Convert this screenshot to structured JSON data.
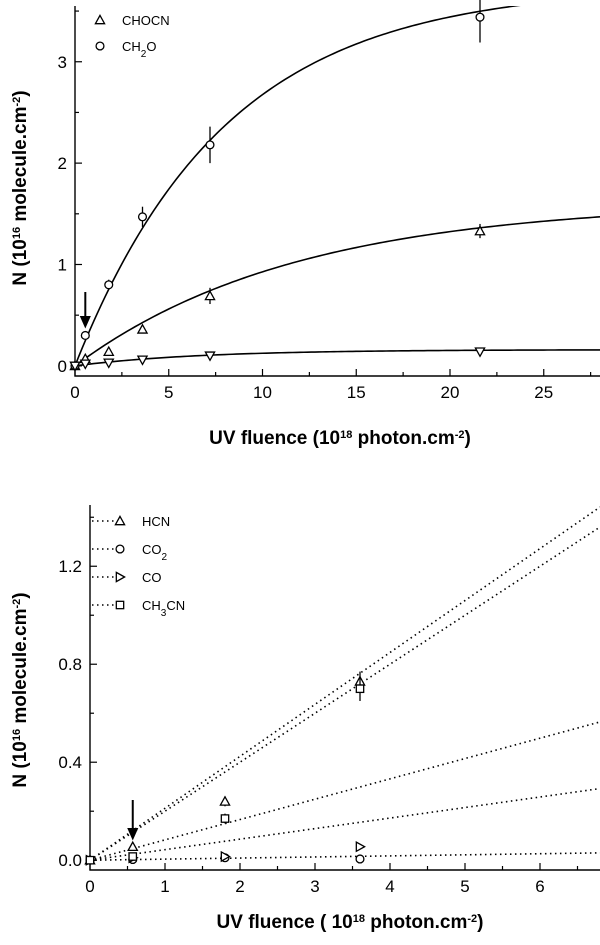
{
  "chart_data": [
    {
      "type": "scatter",
      "xlabel": "UV fluence (10",
      "xlabel_sup": "18",
      "xlabel_tail": " photon.cm",
      "xlabel_tail_sup": "-2",
      "xlabel_close": ")",
      "ylabel": "N (10",
      "ylabel_sup": "16",
      "ylabel_tail": " molecule.cm",
      "ylabel_tail_sup": "-2",
      "ylabel_close": ")",
      "xlim": [
        0,
        28
      ],
      "ylim": [
        -0.1,
        3.55
      ],
      "xticks": [
        0,
        5,
        10,
        15,
        20,
        25
      ],
      "yticks": [
        0,
        1,
        2,
        3
      ],
      "arrow_x": 0.55,
      "legend": [
        {
          "label": "CHOCN",
          "marker": "triangle-up"
        },
        {
          "label": "CH",
          "sub": "2",
          "tail": "O",
          "marker": "circle"
        }
      ],
      "series": [
        {
          "name": "CHOCN",
          "marker": "triangle-up",
          "x": [
            0,
            0.55,
            1.8,
            3.6,
            7.2,
            21.6
          ],
          "y": [
            0,
            0.07,
            0.14,
            0.36,
            0.69,
            1.33
          ],
          "yerr": [
            0,
            0.02,
            0.03,
            0.04,
            0.08,
            0.07
          ],
          "fit": {
            "amp": 1.62,
            "rate": 0.085
          }
        },
        {
          "name": "CH2O",
          "marker": "circle",
          "x": [
            0,
            0.55,
            1.8,
            3.6,
            7.2,
            21.6
          ],
          "y": [
            0,
            0.3,
            0.8,
            1.47,
            2.18,
            3.44
          ],
          "yerr": [
            0,
            0.03,
            0.05,
            0.1,
            0.18,
            0.25
          ],
          "fit": {
            "amp": 3.75,
            "rate": 0.125
          }
        },
        {
          "marker": "triangle-down",
          "x": [
            0,
            0.55,
            1.8,
            3.6,
            7.2,
            21.6
          ],
          "y": [
            0,
            0.02,
            0.03,
            0.06,
            0.1,
            0.14
          ],
          "yerr": [
            0,
            0.01,
            0.01,
            0.01,
            0.02,
            0.02
          ],
          "fit": {
            "amp": 0.16,
            "rate": 0.15
          }
        }
      ]
    },
    {
      "type": "scatter",
      "xlabel": "UV fluence ( 10",
      "xlabel_sup": "18",
      "xlabel_tail": " photon.cm",
      "xlabel_tail_sup": "-2",
      "xlabel_close": ")",
      "ylabel": "N (10",
      "ylabel_sup": "16",
      "ylabel_tail": " molecule.cm",
      "ylabel_tail_sup": "-2",
      "ylabel_close": ")",
      "xlim": [
        0,
        6.8
      ],
      "ylim": [
        -0.04,
        1.45
      ],
      "xticks": [
        0,
        1,
        2,
        3,
        4,
        5,
        6
      ],
      "yticks": [
        0.0,
        0.4,
        0.8,
        1.2
      ],
      "ytick_labels": [
        "0.0",
        "0.4",
        "0.8",
        "1.2"
      ],
      "arrow_x": 0.57,
      "legend": [
        {
          "label": "HCN",
          "marker": "triangle-up"
        },
        {
          "label": "CO",
          "sub": "2",
          "tail": "",
          "marker": "circle"
        },
        {
          "label": "CO",
          "marker": "triangle-right"
        },
        {
          "label": "CH",
          "sub": "3",
          "tail": "CN",
          "marker": "square"
        }
      ],
      "series": [
        {
          "name": "HCN",
          "marker": "triangle-up",
          "x": [
            0,
            0.57,
            1.8,
            3.6
          ],
          "y": [
            0,
            0.055,
            0.24,
            0.73
          ],
          "yerr": [
            0,
            0.01,
            0.02,
            0.04
          ],
          "slope": 0.212
        },
        {
          "name": "CO2",
          "marker": "circle",
          "x": [
            0,
            0.57,
            1.8,
            3.6
          ],
          "y": [
            0,
            0.003,
            0.01,
            0.005
          ],
          "yerr": [
            0,
            0.01,
            0.01,
            0.01
          ],
          "slope": 0.0044
        },
        {
          "name": "CO",
          "marker": "triangle-right",
          "x": [
            0,
            0.57,
            1.8,
            3.6
          ],
          "y": [
            0,
            0.01,
            0.015,
            0.055
          ],
          "yerr": [
            0,
            0.01,
            0.01,
            0.01
          ],
          "slope": 0.043
        },
        {
          "name": "CH3CN",
          "marker": "square",
          "x": [
            0,
            0.57,
            1.8,
            3.6
          ],
          "y": [
            0,
            0.015,
            0.17,
            0.7
          ],
          "yerr": [
            0,
            0.01,
            0.02,
            0.05
          ],
          "slope": 0.2
        },
        {
          "marker": "line-only",
          "x": [],
          "y": [],
          "slope": 0.083
        }
      ]
    }
  ]
}
